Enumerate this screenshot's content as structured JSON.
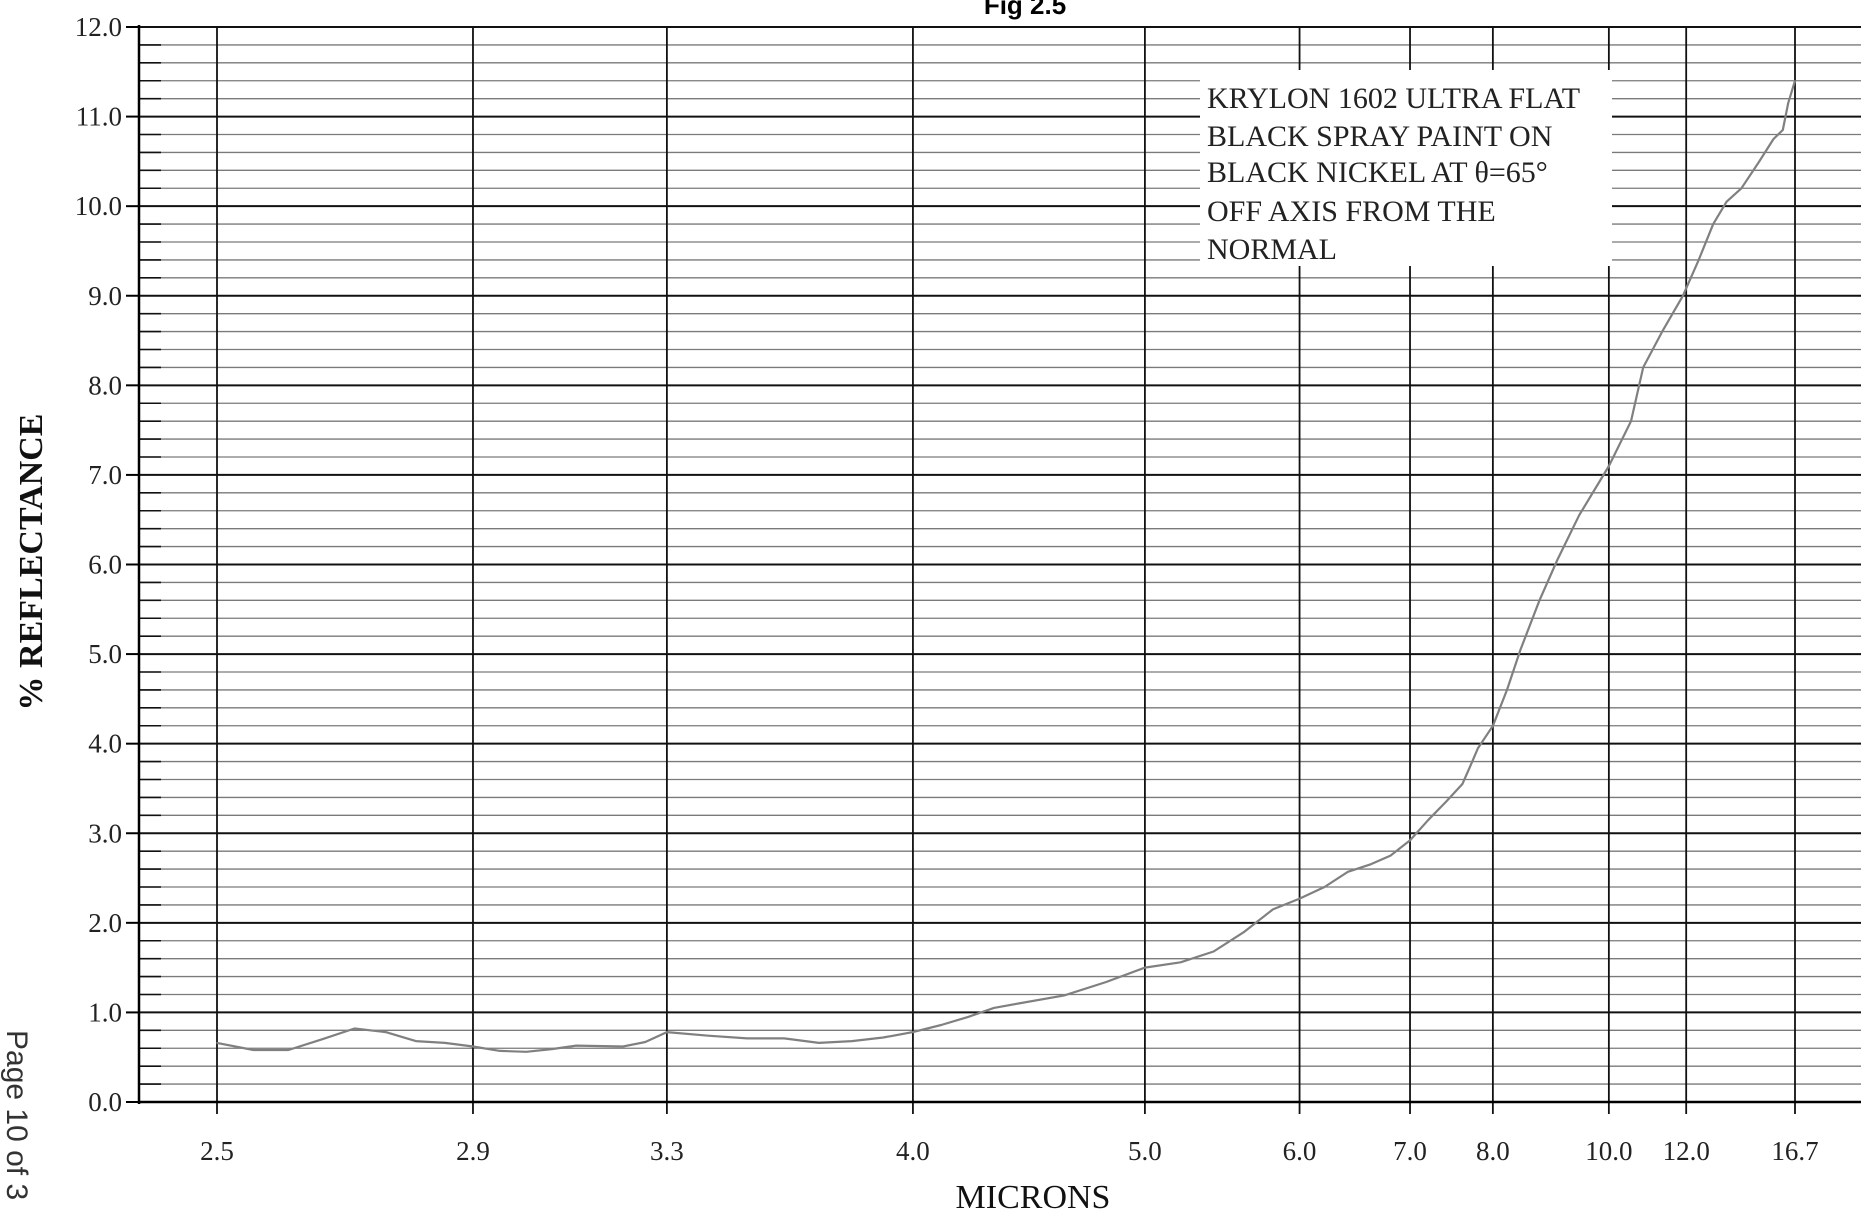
{
  "chart_data": {
    "type": "line",
    "title": "Fig 2.5",
    "xlabel": "MICRONS",
    "ylabel": "% REFLECTANCE",
    "x_scale": "reciprocal",
    "ylim": [
      0,
      12
    ],
    "grid": true,
    "y_ticks": [
      "0.0",
      "1.0",
      "2.0",
      "3.0",
      "4.0",
      "5.0",
      "6.0",
      "7.0",
      "8.0",
      "9.0",
      "10.0",
      "11.0",
      "12.0"
    ],
    "x_ticks": [
      {
        "value": 2.5,
        "label": "2.5"
      },
      {
        "value": 2.9,
        "label": "2.9"
      },
      {
        "value": 3.3,
        "label": "3.3"
      },
      {
        "value": 4.0,
        "label": "4.0"
      },
      {
        "value": 5.0,
        "label": "5.0"
      },
      {
        "value": 6.0,
        "label": "6.0"
      },
      {
        "value": 7.0,
        "label": "7.0"
      },
      {
        "value": 8.0,
        "label": "8.0"
      },
      {
        "value": 10.0,
        "label": "10.0"
      },
      {
        "value": 12.0,
        "label": "12.0"
      },
      {
        "value": 16.7,
        "label": "16.7"
      }
    ],
    "annotation": [
      "KRYLON 1602 ULTRA FLAT",
      "BLACK SPRAY PAINT ON",
      "BLACK NICKEL AT θ=65°",
      "OFF AXIS FROM THE",
      "NORMAL"
    ],
    "series": [
      {
        "color": "#808080",
        "points": [
          [
            2.5,
            0.66
          ],
          [
            2.55,
            0.58
          ],
          [
            2.6,
            0.58
          ],
          [
            2.65,
            0.7
          ],
          [
            2.7,
            0.82
          ],
          [
            2.75,
            0.78
          ],
          [
            2.8,
            0.68
          ],
          [
            2.85,
            0.66
          ],
          [
            2.9,
            0.62
          ],
          [
            2.95,
            0.57
          ],
          [
            3.0,
            0.56
          ],
          [
            3.05,
            0.59
          ],
          [
            3.1,
            0.63
          ],
          [
            3.2,
            0.62
          ],
          [
            3.25,
            0.67
          ],
          [
            3.3,
            0.78
          ],
          [
            3.4,
            0.74
          ],
          [
            3.5,
            0.71
          ],
          [
            3.6,
            0.71
          ],
          [
            3.7,
            0.66
          ],
          [
            3.8,
            0.68
          ],
          [
            3.9,
            0.72
          ],
          [
            4.0,
            0.78
          ],
          [
            4.1,
            0.86
          ],
          [
            4.2,
            0.95
          ],
          [
            4.3,
            1.05
          ],
          [
            4.4,
            1.1
          ],
          [
            4.6,
            1.19
          ],
          [
            4.8,
            1.34
          ],
          [
            5.0,
            1.5
          ],
          [
            5.2,
            1.56
          ],
          [
            5.4,
            1.68
          ],
          [
            5.6,
            1.9
          ],
          [
            5.8,
            2.15
          ],
          [
            6.0,
            2.27
          ],
          [
            6.2,
            2.4
          ],
          [
            6.4,
            2.57
          ],
          [
            6.6,
            2.65
          ],
          [
            6.8,
            2.75
          ],
          [
            7.0,
            2.92
          ],
          [
            7.2,
            3.15
          ],
          [
            7.4,
            3.35
          ],
          [
            7.6,
            3.55
          ],
          [
            7.7,
            3.75
          ],
          [
            7.8,
            3.95
          ],
          [
            8.0,
            4.2
          ],
          [
            8.2,
            4.6
          ],
          [
            8.4,
            5.05
          ],
          [
            8.7,
            5.6
          ],
          [
            9.0,
            6.05
          ],
          [
            9.4,
            6.55
          ],
          [
            10.0,
            7.1
          ],
          [
            10.5,
            7.6
          ],
          [
            10.8,
            8.2
          ],
          [
            11.3,
            8.6
          ],
          [
            11.9,
            9.0
          ],
          [
            12.4,
            9.4
          ],
          [
            12.9,
            9.8
          ],
          [
            13.4,
            10.05
          ],
          [
            14.0,
            10.2
          ],
          [
            14.8,
            10.5
          ],
          [
            15.5,
            10.75
          ],
          [
            16.0,
            10.85
          ],
          [
            16.3,
            11.15
          ],
          [
            16.7,
            11.4
          ]
        ]
      }
    ]
  },
  "footer_text": "Page 10 of 3"
}
